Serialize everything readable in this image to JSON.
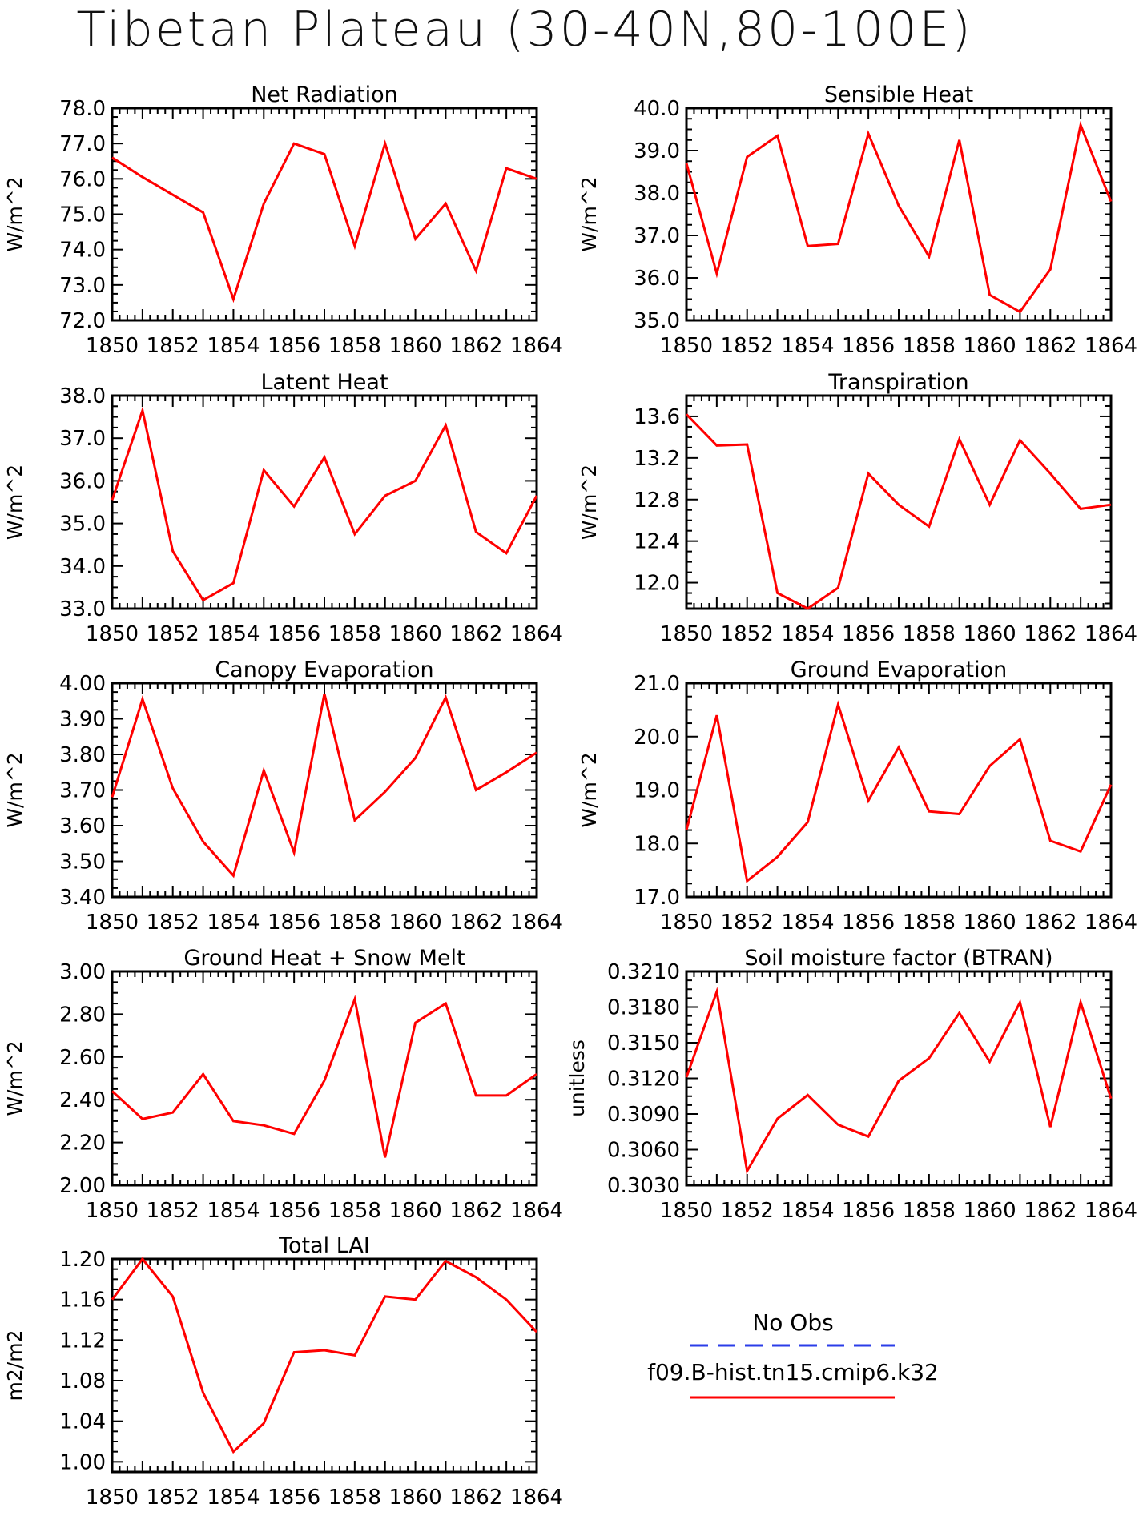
{
  "title": "Tibetan Plateau (30-40N,80-100E)",
  "legend": {
    "obs_label": "No Obs",
    "obs_color": "#2b3ee8",
    "model_label": "f09.B-hist.tn15.cmip6.k32",
    "model_color": "#ff0000"
  },
  "chart_data": [
    {
      "type": "line",
      "title": "Net Radiation",
      "ylabel": "W/m^2",
      "x": [
        1850,
        1851,
        1852,
        1853,
        1854,
        1855,
        1856,
        1857,
        1858,
        1859,
        1860,
        1861,
        1862,
        1863,
        1864
      ],
      "xlim": [
        1850,
        1864
      ],
      "ylim": [
        72.0,
        78.0
      ],
      "yticks": [
        "72.0",
        "73.0",
        "74.0",
        "75.0",
        "76.0",
        "77.0",
        "78.0"
      ],
      "xticks": [
        "1850",
        "1852",
        "1854",
        "1856",
        "1858",
        "1860",
        "1862",
        "1864"
      ],
      "series": [
        {
          "values": [
            76.6,
            76.05,
            75.55,
            75.05,
            72.6,
            75.3,
            77.0,
            76.7,
            74.1,
            77.0,
            74.3,
            75.3,
            73.4,
            76.3,
            76.0
          ]
        }
      ]
    },
    {
      "type": "line",
      "title": "Sensible Heat",
      "ylabel": "W/m^2",
      "x": [
        1850,
        1851,
        1852,
        1853,
        1854,
        1855,
        1856,
        1857,
        1858,
        1859,
        1860,
        1861,
        1862,
        1863,
        1864
      ],
      "xlim": [
        1850,
        1864
      ],
      "ylim": [
        35.0,
        40.0
      ],
      "yticks": [
        "35.0",
        "36.0",
        "37.0",
        "38.0",
        "39.0",
        "40.0"
      ],
      "xticks": [
        "1850",
        "1852",
        "1854",
        "1856",
        "1858",
        "1860",
        "1862",
        "1864"
      ],
      "series": [
        {
          "values": [
            38.7,
            36.1,
            38.85,
            39.35,
            36.75,
            36.8,
            39.4,
            37.7,
            36.5,
            39.25,
            35.6,
            35.2,
            36.2,
            39.6,
            37.8
          ]
        }
      ]
    },
    {
      "type": "line",
      "title": "Latent Heat",
      "ylabel": "W/m^2",
      "x": [
        1850,
        1851,
        1852,
        1853,
        1854,
        1855,
        1856,
        1857,
        1858,
        1859,
        1860,
        1861,
        1862,
        1863,
        1864
      ],
      "xlim": [
        1850,
        1864
      ],
      "ylim": [
        33.0,
        38.0
      ],
      "yticks": [
        "33.0",
        "34.0",
        "35.0",
        "36.0",
        "37.0",
        "38.0"
      ],
      "xticks": [
        "1850",
        "1852",
        "1854",
        "1856",
        "1858",
        "1860",
        "1862",
        "1864"
      ],
      "series": [
        {
          "values": [
            35.55,
            37.65,
            34.35,
            33.2,
            33.6,
            36.25,
            35.4,
            36.55,
            34.75,
            35.65,
            36.0,
            37.3,
            34.8,
            34.3,
            35.65
          ]
        }
      ]
    },
    {
      "type": "line",
      "title": "Transpiration",
      "ylabel": "W/m^2",
      "x": [
        1850,
        1851,
        1852,
        1853,
        1854,
        1855,
        1856,
        1857,
        1858,
        1859,
        1860,
        1861,
        1862,
        1863,
        1864
      ],
      "xlim": [
        1850,
        1864
      ],
      "ylim": [
        11.75,
        13.8
      ],
      "yticks": [
        "12.0",
        "12.4",
        "12.8",
        "13.2",
        "13.6"
      ],
      "xticks": [
        "1850",
        "1852",
        "1854",
        "1856",
        "1858",
        "1860",
        "1862",
        "1864"
      ],
      "series": [
        {
          "values": [
            13.62,
            13.32,
            13.33,
            11.9,
            11.75,
            11.95,
            13.05,
            12.75,
            12.54,
            13.38,
            12.75,
            13.37,
            13.05,
            12.71,
            12.75
          ]
        }
      ]
    },
    {
      "type": "line",
      "title": "Canopy Evaporation",
      "ylabel": "W/m^2",
      "x": [
        1850,
        1851,
        1852,
        1853,
        1854,
        1855,
        1856,
        1857,
        1858,
        1859,
        1860,
        1861,
        1862,
        1863,
        1864
      ],
      "xlim": [
        1850,
        1864
      ],
      "ylim": [
        3.4,
        4.0
      ],
      "yticks": [
        "3.40",
        "3.50",
        "3.60",
        "3.70",
        "3.80",
        "3.90",
        "4.00"
      ],
      "xticks": [
        "1850",
        "1852",
        "1854",
        "1856",
        "1858",
        "1860",
        "1862",
        "1864"
      ],
      "series": [
        {
          "values": [
            3.68,
            3.955,
            3.705,
            3.555,
            3.46,
            3.755,
            3.525,
            3.97,
            3.615,
            3.695,
            3.79,
            3.96,
            3.7,
            3.75,
            3.805
          ]
        }
      ]
    },
    {
      "type": "line",
      "title": "Ground Evaporation",
      "ylabel": "W/m^2",
      "x": [
        1850,
        1851,
        1852,
        1853,
        1854,
        1855,
        1856,
        1857,
        1858,
        1859,
        1860,
        1861,
        1862,
        1863,
        1864
      ],
      "xlim": [
        1850,
        1864
      ],
      "ylim": [
        17.0,
        21.0
      ],
      "yticks": [
        "17.0",
        "18.0",
        "19.0",
        "20.0",
        "21.0"
      ],
      "xticks": [
        "1850",
        "1852",
        "1854",
        "1856",
        "1858",
        "1860",
        "1862",
        "1864"
      ],
      "series": [
        {
          "values": [
            18.25,
            20.4,
            17.3,
            17.75,
            18.4,
            20.6,
            18.8,
            19.8,
            18.6,
            18.55,
            19.45,
            19.95,
            18.05,
            17.85,
            19.1
          ]
        }
      ]
    },
    {
      "type": "line",
      "title": "Ground Heat + Snow Melt",
      "ylabel": "W/m^2",
      "x": [
        1850,
        1851,
        1852,
        1853,
        1854,
        1855,
        1856,
        1857,
        1858,
        1859,
        1860,
        1861,
        1862,
        1863,
        1864
      ],
      "xlim": [
        1850,
        1864
      ],
      "ylim": [
        2.0,
        3.0
      ],
      "yticks": [
        "2.00",
        "2.20",
        "2.40",
        "2.60",
        "2.80",
        "3.00"
      ],
      "xticks": [
        "1850",
        "1852",
        "1854",
        "1856",
        "1858",
        "1860",
        "1862",
        "1864"
      ],
      "series": [
        {
          "values": [
            2.44,
            2.31,
            2.34,
            2.52,
            2.3,
            2.28,
            2.24,
            2.49,
            2.87,
            2.13,
            2.76,
            2.85,
            2.42,
            2.42,
            2.52
          ]
        }
      ]
    },
    {
      "type": "line",
      "title": "Soil moisture factor (BTRAN)",
      "ylabel": "unitless",
      "x": [
        1850,
        1851,
        1852,
        1853,
        1854,
        1855,
        1856,
        1857,
        1858,
        1859,
        1860,
        1861,
        1862,
        1863,
        1864
      ],
      "xlim": [
        1850,
        1864
      ],
      "ylim": [
        0.303,
        0.321
      ],
      "yticks": [
        "0.3030",
        "0.3060",
        "0.3090",
        "0.3120",
        "0.3150",
        "0.3180",
        "0.3210"
      ],
      "xticks": [
        "1850",
        "1852",
        "1854",
        "1856",
        "1858",
        "1860",
        "1862",
        "1864"
      ],
      "series": [
        {
          "values": [
            0.3121,
            0.3193,
            0.3042,
            0.3086,
            0.3106,
            0.3081,
            0.3071,
            0.3118,
            0.3137,
            0.3175,
            0.3134,
            0.3184,
            0.3079,
            0.3184,
            0.3103
          ]
        }
      ]
    },
    {
      "type": "line",
      "title": "Total LAI",
      "ylabel": "m2/m2",
      "x": [
        1850,
        1851,
        1852,
        1853,
        1854,
        1855,
        1856,
        1857,
        1858,
        1859,
        1860,
        1861,
        1862,
        1863,
        1864
      ],
      "xlim": [
        1850,
        1864
      ],
      "ylim": [
        0.99,
        1.2
      ],
      "yticks": [
        "1.00",
        "1.04",
        "1.08",
        "1.12",
        "1.16",
        "1.20"
      ],
      "xticks": [
        "1850",
        "1852",
        "1854",
        "1856",
        "1858",
        "1860",
        "1862",
        "1864"
      ],
      "series": [
        {
          "values": [
            1.16,
            1.2,
            1.163,
            1.068,
            1.01,
            1.038,
            1.108,
            1.11,
            1.105,
            1.163,
            1.16,
            1.198,
            1.182,
            1.16,
            1.128
          ]
        }
      ]
    }
  ]
}
